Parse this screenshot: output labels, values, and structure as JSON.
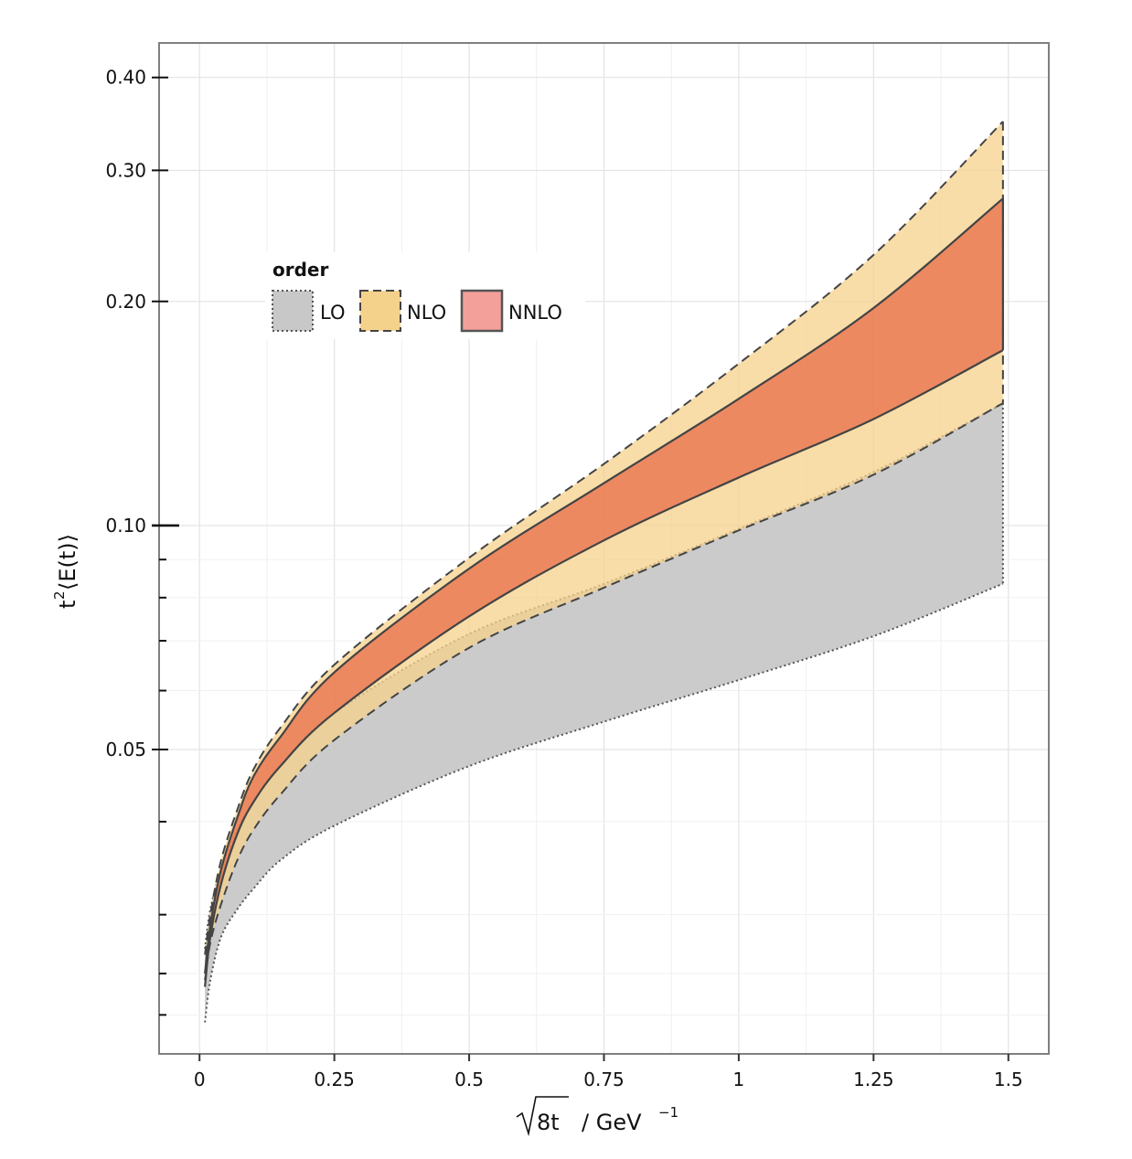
{
  "chart_data": {
    "type": "area",
    "xlabel_radical": "8t",
    "xlabel_unit": "/ GeV",
    "xlabel_exponent": "−1",
    "ylabel_base": "t",
    "ylabel_exponent": "2",
    "ylabel_rest": "⟨E(t)⟩",
    "y_scale": "log",
    "xlim": [
      -0.075,
      1.575
    ],
    "ylim": [
      0.0195,
      0.445
    ],
    "x_ticks": [
      {
        "value": 0,
        "label": "0"
      },
      {
        "value": 0.25,
        "label": "0.25"
      },
      {
        "value": 0.5,
        "label": "0.5"
      },
      {
        "value": 0.75,
        "label": "0.75"
      },
      {
        "value": 1.0,
        "label": "1"
      },
      {
        "value": 1.25,
        "label": "1.25"
      },
      {
        "value": 1.5,
        "label": "1.5"
      }
    ],
    "y_ticks": [
      {
        "value": 0.05,
        "label": "0.05"
      },
      {
        "value": 0.1,
        "label": "0.10"
      },
      {
        "value": 0.2,
        "label": "0.20"
      },
      {
        "value": 0.3,
        "label": "0.30"
      },
      {
        "value": 0.4,
        "label": "0.40"
      }
    ],
    "y_minor_ticks": [
      0.022,
      0.025,
      0.03,
      0.04,
      0.06,
      0.07,
      0.08,
      0.09
    ],
    "grid": true,
    "legend": {
      "title": "order",
      "placement": "top-left",
      "entries": [
        "LO",
        "NLO",
        "NNLO"
      ]
    },
    "x": [
      0.01,
      0.02,
      0.04,
      0.07,
      0.1,
      0.15,
      0.25,
      0.5,
      0.75,
      1.0,
      1.25,
      1.49
    ],
    "series": [
      {
        "name": "LO",
        "fill": "#c8c8c8",
        "fill_opacity": 0.95,
        "stroke": "#555555",
        "line_style": "dotted",
        "upper": [
          0.027,
          0.0305,
          0.0345,
          0.039,
          0.0425,
          0.0475,
          0.056,
          0.0715,
          0.0835,
          0.099,
          0.118,
          0.146
        ],
        "lower": [
          0.0215,
          0.0245,
          0.028,
          0.0305,
          0.0325,
          0.0355,
          0.0395,
          0.0475,
          0.0545,
          0.062,
          0.071,
          0.0835
        ]
      },
      {
        "name": "NLO",
        "fill": "#f5d28c",
        "fill_opacity": 0.75,
        "stroke": "#444444",
        "line_style": "dashed",
        "upper": [
          0.0265,
          0.03,
          0.0355,
          0.0415,
          0.047,
          0.0535,
          0.065,
          0.0905,
          0.121,
          0.165,
          0.231,
          0.349
        ],
        "lower": [
          0.0245,
          0.0275,
          0.031,
          0.0355,
          0.039,
          0.0435,
          0.0515,
          0.0685,
          0.0825,
          0.0985,
          0.117,
          0.146
        ]
      },
      {
        "name": "NNLO",
        "fill": "#e8613f",
        "fill_opacity": 0.68,
        "stroke": "#444444",
        "line_style": "solid",
        "upper": [
          0.025,
          0.029,
          0.0345,
          0.0405,
          0.046,
          0.052,
          0.0635,
          0.0875,
          0.114,
          0.148,
          0.196,
          0.275
        ],
        "lower": [
          0.024,
          0.028,
          0.033,
          0.0385,
          0.0425,
          0.0475,
          0.056,
          0.0755,
          0.0955,
          0.116,
          0.139,
          0.172
        ]
      }
    ]
  }
}
